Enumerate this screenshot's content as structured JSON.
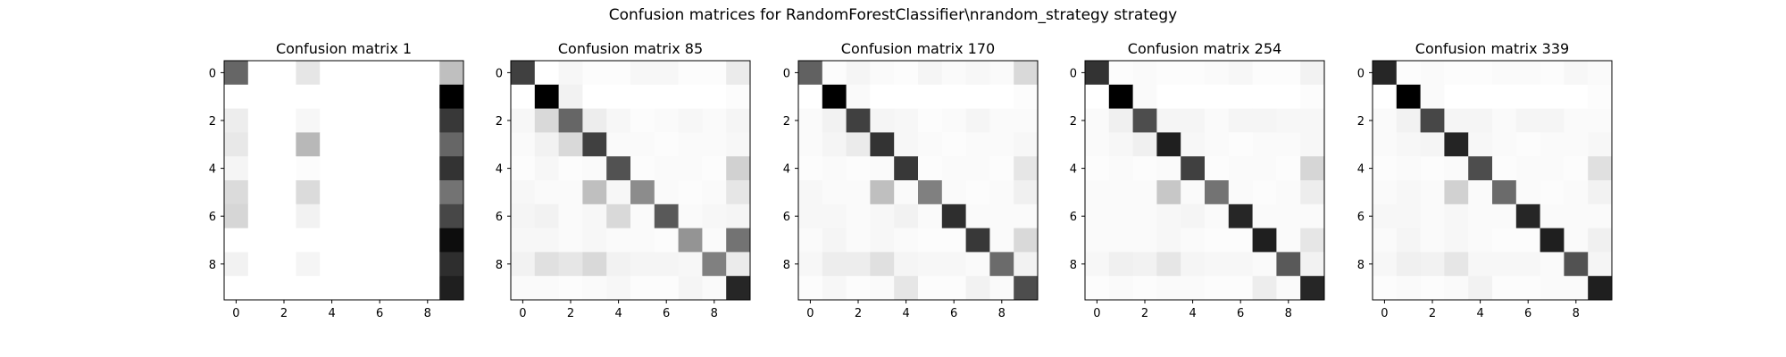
{
  "figure": {
    "suptitle": "Confusion matrices for RandomForestClassifier\\nrandom_strategy strategy"
  },
  "chart_data": [
    {
      "type": "heatmap",
      "title": "Confusion matrix 1",
      "colormap": "Greys",
      "xticks": [
        0,
        2,
        4,
        6,
        8
      ],
      "yticks": [
        0,
        2,
        4,
        6,
        8
      ],
      "matrix": [
        [
          0.6,
          0.0,
          0.0,
          0.1,
          0.0,
          0.0,
          0.0,
          0.0,
          0.0,
          0.25
        ],
        [
          0.0,
          0.0,
          0.0,
          0.0,
          0.0,
          0.0,
          0.0,
          0.0,
          0.0,
          1.0
        ],
        [
          0.07,
          0.0,
          0.0,
          0.03,
          0.0,
          0.0,
          0.0,
          0.0,
          0.0,
          0.78
        ],
        [
          0.09,
          0.0,
          0.0,
          0.28,
          0.0,
          0.0,
          0.0,
          0.0,
          0.0,
          0.6
        ],
        [
          0.04,
          0.0,
          0.0,
          0.01,
          0.0,
          0.0,
          0.0,
          0.0,
          0.0,
          0.8
        ],
        [
          0.14,
          0.0,
          0.0,
          0.14,
          0.0,
          0.0,
          0.0,
          0.0,
          0.0,
          0.55
        ],
        [
          0.16,
          0.0,
          0.0,
          0.05,
          0.0,
          0.0,
          0.0,
          0.0,
          0.0,
          0.72
        ],
        [
          0.0,
          0.0,
          0.0,
          0.0,
          0.0,
          0.0,
          0.0,
          0.0,
          0.0,
          0.95
        ],
        [
          0.05,
          0.0,
          0.0,
          0.04,
          0.0,
          0.0,
          0.0,
          0.0,
          0.0,
          0.82
        ],
        [
          0.0,
          0.0,
          0.0,
          0.0,
          0.0,
          0.0,
          0.0,
          0.0,
          0.0,
          0.88
        ]
      ]
    },
    {
      "type": "heatmap",
      "title": "Confusion matrix 85",
      "colormap": "Greys",
      "xticks": [
        0,
        2,
        4,
        6,
        8
      ],
      "yticks": [
        0,
        2,
        4,
        6,
        8
      ],
      "matrix": [
        [
          0.75,
          0.0,
          0.03,
          0.01,
          0.01,
          0.03,
          0.03,
          0.01,
          0.01,
          0.08
        ],
        [
          0.0,
          1.0,
          0.05,
          0.0,
          0.0,
          0.0,
          0.0,
          0.0,
          0.0,
          0.01
        ],
        [
          0.03,
          0.15,
          0.6,
          0.07,
          0.03,
          0.01,
          0.02,
          0.03,
          0.02,
          0.04
        ],
        [
          0.02,
          0.05,
          0.15,
          0.75,
          0.02,
          0.02,
          0.01,
          0.02,
          0.02,
          0.03
        ],
        [
          0.01,
          0.03,
          0.01,
          0.02,
          0.68,
          0.01,
          0.02,
          0.02,
          0.01,
          0.18
        ],
        [
          0.03,
          0.02,
          0.02,
          0.25,
          0.03,
          0.45,
          0.02,
          0.01,
          0.02,
          0.1
        ],
        [
          0.04,
          0.05,
          0.02,
          0.03,
          0.15,
          0.02,
          0.65,
          0.02,
          0.03,
          0.04
        ],
        [
          0.03,
          0.03,
          0.02,
          0.03,
          0.02,
          0.02,
          0.01,
          0.42,
          0.02,
          0.55
        ],
        [
          0.05,
          0.12,
          0.1,
          0.15,
          0.05,
          0.04,
          0.04,
          0.03,
          0.5,
          0.08
        ],
        [
          0.02,
          0.02,
          0.01,
          0.02,
          0.03,
          0.01,
          0.01,
          0.04,
          0.02,
          0.85
        ]
      ]
    },
    {
      "type": "heatmap",
      "title": "Confusion matrix 170",
      "colormap": "Greys",
      "xticks": [
        0,
        2,
        4,
        6,
        8
      ],
      "yticks": [
        0,
        2,
        4,
        6,
        8
      ],
      "matrix": [
        [
          0.62,
          0.01,
          0.04,
          0.02,
          0.01,
          0.04,
          0.02,
          0.03,
          0.02,
          0.15
        ],
        [
          0.0,
          1.0,
          0.02,
          0.0,
          0.0,
          0.0,
          0.0,
          0.0,
          0.0,
          0.01
        ],
        [
          0.02,
          0.05,
          0.75,
          0.04,
          0.03,
          0.01,
          0.02,
          0.04,
          0.02,
          0.02
        ],
        [
          0.02,
          0.04,
          0.08,
          0.8,
          0.03,
          0.02,
          0.01,
          0.02,
          0.02,
          0.03
        ],
        [
          0.01,
          0.02,
          0.01,
          0.02,
          0.78,
          0.01,
          0.02,
          0.02,
          0.01,
          0.1
        ],
        [
          0.03,
          0.02,
          0.02,
          0.25,
          0.02,
          0.5,
          0.02,
          0.01,
          0.02,
          0.06
        ],
        [
          0.03,
          0.03,
          0.02,
          0.03,
          0.05,
          0.02,
          0.82,
          0.02,
          0.02,
          0.02
        ],
        [
          0.02,
          0.04,
          0.02,
          0.03,
          0.02,
          0.01,
          0.01,
          0.78,
          0.02,
          0.15
        ],
        [
          0.03,
          0.07,
          0.07,
          0.12,
          0.04,
          0.03,
          0.03,
          0.02,
          0.58,
          0.05
        ],
        [
          0.01,
          0.03,
          0.01,
          0.02,
          0.1,
          0.01,
          0.01,
          0.05,
          0.02,
          0.7
        ]
      ]
    },
    {
      "type": "heatmap",
      "title": "Confusion matrix 254",
      "colormap": "Greys",
      "xticks": [
        0,
        2,
        4,
        6,
        8
      ],
      "yticks": [
        0,
        2,
        4,
        6,
        8
      ],
      "matrix": [
        [
          0.8,
          0.01,
          0.02,
          0.01,
          0.01,
          0.02,
          0.03,
          0.01,
          0.01,
          0.05
        ],
        [
          0.0,
          1.0,
          0.02,
          0.0,
          0.0,
          0.0,
          0.0,
          0.0,
          0.0,
          0.01
        ],
        [
          0.02,
          0.06,
          0.7,
          0.04,
          0.04,
          0.02,
          0.04,
          0.04,
          0.03,
          0.03
        ],
        [
          0.02,
          0.03,
          0.06,
          0.88,
          0.03,
          0.02,
          0.01,
          0.02,
          0.02,
          0.03
        ],
        [
          0.01,
          0.02,
          0.01,
          0.02,
          0.75,
          0.01,
          0.02,
          0.02,
          0.01,
          0.16
        ],
        [
          0.02,
          0.02,
          0.02,
          0.22,
          0.02,
          0.55,
          0.02,
          0.01,
          0.02,
          0.07
        ],
        [
          0.02,
          0.02,
          0.02,
          0.03,
          0.04,
          0.02,
          0.85,
          0.02,
          0.02,
          0.02
        ],
        [
          0.02,
          0.02,
          0.02,
          0.03,
          0.02,
          0.01,
          0.01,
          0.88,
          0.02,
          0.1
        ],
        [
          0.03,
          0.06,
          0.05,
          0.1,
          0.04,
          0.03,
          0.03,
          0.02,
          0.65,
          0.05
        ],
        [
          0.01,
          0.02,
          0.01,
          0.02,
          0.02,
          0.01,
          0.01,
          0.07,
          0.02,
          0.85
        ]
      ]
    },
    {
      "type": "heatmap",
      "title": "Confusion matrix 339",
      "colormap": "Greys",
      "xticks": [
        0,
        2,
        4,
        6,
        8
      ],
      "yticks": [
        0,
        2,
        4,
        6,
        8
      ],
      "matrix": [
        [
          0.85,
          0.01,
          0.02,
          0.01,
          0.01,
          0.02,
          0.02,
          0.01,
          0.03,
          0.02
        ],
        [
          0.0,
          1.0,
          0.02,
          0.0,
          0.0,
          0.0,
          0.0,
          0.0,
          0.0,
          0.01
        ],
        [
          0.02,
          0.05,
          0.72,
          0.04,
          0.04,
          0.02,
          0.04,
          0.04,
          0.02,
          0.02
        ],
        [
          0.02,
          0.03,
          0.04,
          0.86,
          0.03,
          0.02,
          0.01,
          0.02,
          0.02,
          0.03
        ],
        [
          0.01,
          0.02,
          0.01,
          0.02,
          0.7,
          0.01,
          0.02,
          0.02,
          0.01,
          0.12
        ],
        [
          0.02,
          0.03,
          0.02,
          0.18,
          0.02,
          0.58,
          0.02,
          0.01,
          0.02,
          0.05
        ],
        [
          0.03,
          0.03,
          0.02,
          0.03,
          0.02,
          0.02,
          0.85,
          0.02,
          0.02,
          0.02
        ],
        [
          0.02,
          0.04,
          0.02,
          0.03,
          0.02,
          0.01,
          0.01,
          0.88,
          0.02,
          0.06
        ],
        [
          0.03,
          0.06,
          0.05,
          0.1,
          0.03,
          0.03,
          0.03,
          0.02,
          0.68,
          0.04
        ],
        [
          0.01,
          0.02,
          0.01,
          0.02,
          0.05,
          0.01,
          0.01,
          0.02,
          0.02,
          0.88
        ]
      ]
    }
  ]
}
